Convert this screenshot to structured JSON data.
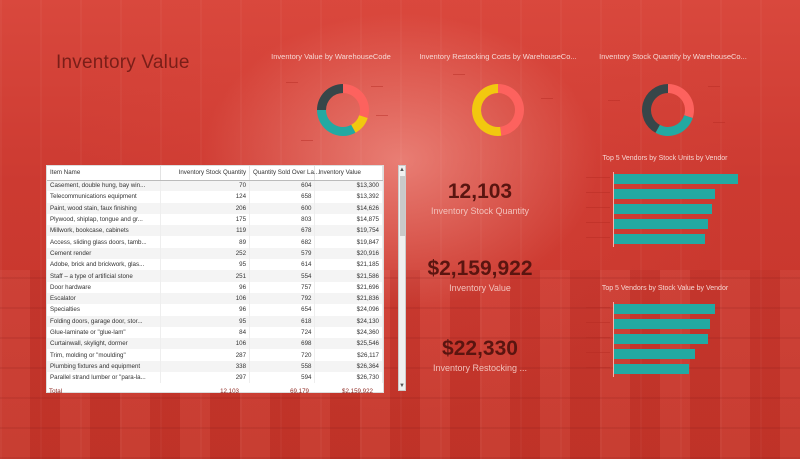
{
  "page": {
    "title": "Inventory Value"
  },
  "colors": {
    "teal": "#23a9a2",
    "red": "#fd625e",
    "yellow": "#f2c80f",
    "dark": "#374649",
    "salmon": "#fe9666"
  },
  "donuts": [
    {
      "title": "Inventory Value by WarehouseCode",
      "segments": [
        {
          "value": 0.3,
          "color": "#fd625e"
        },
        {
          "value": 0.12,
          "color": "#f2c80f"
        },
        {
          "value": 0.33,
          "color": "#23a9a2"
        },
        {
          "value": 0.25,
          "color": "#374649"
        }
      ]
    },
    {
      "title": "Inventory Restocking Costs by WarehouseCo...",
      "segments": [
        {
          "value": 0.48,
          "color": "#fd625e"
        },
        {
          "value": 0.52,
          "color": "#f2c80f"
        }
      ]
    },
    {
      "title": "Inventory Stock Quantity by WarehouseCo...",
      "segments": [
        {
          "value": 0.3,
          "color": "#fd625e"
        },
        {
          "value": 0.28,
          "color": "#23a9a2"
        },
        {
          "value": 0.42,
          "color": "#374649"
        }
      ]
    }
  ],
  "table": {
    "headers": [
      "Item Name",
      "Inventory Stock Quantity",
      "Quantity Sold Over La...",
      "Inventory Value"
    ],
    "rows": [
      [
        "Casement, double hung, bay win...",
        "70",
        "604",
        "$13,300"
      ],
      [
        "Telecommunications equipment",
        "124",
        "658",
        "$13,392"
      ],
      [
        "Paint, wood stain, faux finishing",
        "206",
        "600",
        "$14,626"
      ],
      [
        "Plywood, shiplap, tongue and gr...",
        "175",
        "803",
        "$14,875"
      ],
      [
        "Millwork, bookcase, cabinets",
        "119",
        "678",
        "$19,754"
      ],
      [
        "Access, sliding glass doors, tamb...",
        "89",
        "682",
        "$19,847"
      ],
      [
        "Cement render",
        "252",
        "579",
        "$20,916"
      ],
      [
        "Adobe, brick and brickwork, glas...",
        "95",
        "614",
        "$21,185"
      ],
      [
        "Staff – a type of artificial stone",
        "251",
        "554",
        "$21,586"
      ],
      [
        "Door hardware",
        "96",
        "757",
        "$21,696"
      ],
      [
        "Escalator",
        "106",
        "792",
        "$21,836"
      ],
      [
        "Specialties",
        "96",
        "654",
        "$24,096"
      ],
      [
        "Folding doors, garage door, stor...",
        "95",
        "618",
        "$24,130"
      ],
      [
        "Glue-laminate or \"glue-lam\"",
        "84",
        "724",
        "$24,360"
      ],
      [
        "Curtainwall, skylight, dormer",
        "106",
        "698",
        "$25,546"
      ],
      [
        "Trim, molding or \"moulding\"",
        "287",
        "720",
        "$26,117"
      ],
      [
        "Plumbing fixtures and equipment",
        "338",
        "558",
        "$26,364"
      ],
      [
        "Parallel strand lumber or \"para-la...",
        "297",
        "594",
        "$26,730"
      ]
    ],
    "total": {
      "label": "Total",
      "stock": "12,103",
      "sold": "69,179",
      "value": "$2,159,922"
    }
  },
  "kpis": [
    {
      "value": "12,103",
      "label": "Inventory Stock Quantity"
    },
    {
      "value": "$2,159,922",
      "label": "Inventory Value"
    },
    {
      "value": "$22,330",
      "label": "Inventory Restocking ..."
    }
  ],
  "bar_charts": [
    {
      "title": "Top 5 Vendors by Stock Units by Vendor",
      "values": [
        0.95,
        0.78,
        0.75,
        0.72,
        0.7
      ]
    },
    {
      "title": "Top 5 Vendors by Stock Value by Vendor",
      "values": [
        0.78,
        0.74,
        0.72,
        0.62,
        0.58
      ]
    }
  ]
}
